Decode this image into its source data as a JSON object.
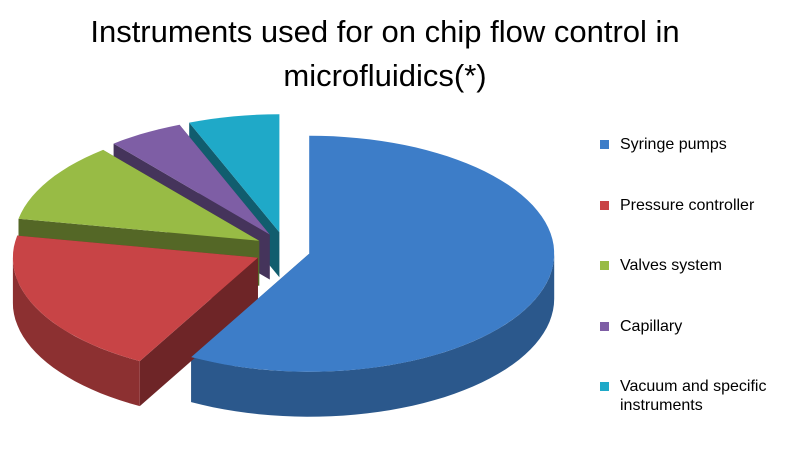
{
  "chart_data": {
    "type": "pie3d",
    "title": "Instruments used for on chip flow control in microfluidics(*)",
    "categories": [
      "Syringe pumps",
      "Pressure controller",
      "Valves system",
      "Capillary",
      "Vacuum and specific instruments"
    ],
    "values": [
      58,
      20,
      11,
      5,
      6
    ],
    "colors": [
      "#3d7dc8",
      "#c84446",
      "#98bb45",
      "#7e5ea5",
      "#1fa9c8"
    ],
    "legend": "right"
  }
}
